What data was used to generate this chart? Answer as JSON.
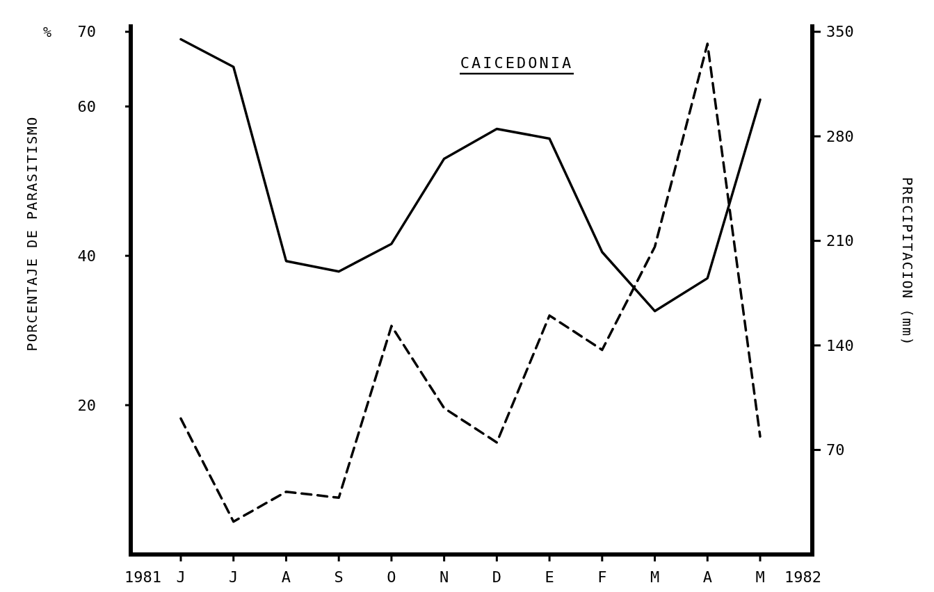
{
  "chart_data": {
    "type": "line",
    "title": "CAICEDONIA",
    "ylabel": "PORCENTAJE DE PARASITISMO",
    "y2label": "PRECIPITACION (mm)",
    "annotations": [
      "%",
      "1981",
      "1982"
    ],
    "categories": [
      "J",
      "J",
      "A",
      "S",
      "O",
      "N",
      "D",
      "E",
      "F",
      "M",
      "A",
      "M"
    ],
    "ylim": [
      0,
      71
    ],
    "yticks": [
      20,
      40,
      60,
      70
    ],
    "y2lim": [
      0,
      355
    ],
    "y2ticks": [
      70,
      140,
      210,
      280,
      350
    ],
    "series": [
      {
        "color": "#000000",
        "line_style": "solid",
        "values": [
          69,
          65.3,
          39.3,
          37.9,
          41.6,
          53,
          57,
          55.7,
          40.5,
          32.6,
          37,
          60.9
        ]
      },
      {
        "color": "#000000",
        "line_style": "dashed",
        "axis": "y2",
        "values": [
          91,
          22,
          42,
          38,
          153,
          98,
          75,
          160,
          137,
          206,
          342,
          79
        ]
      }
    ]
  }
}
